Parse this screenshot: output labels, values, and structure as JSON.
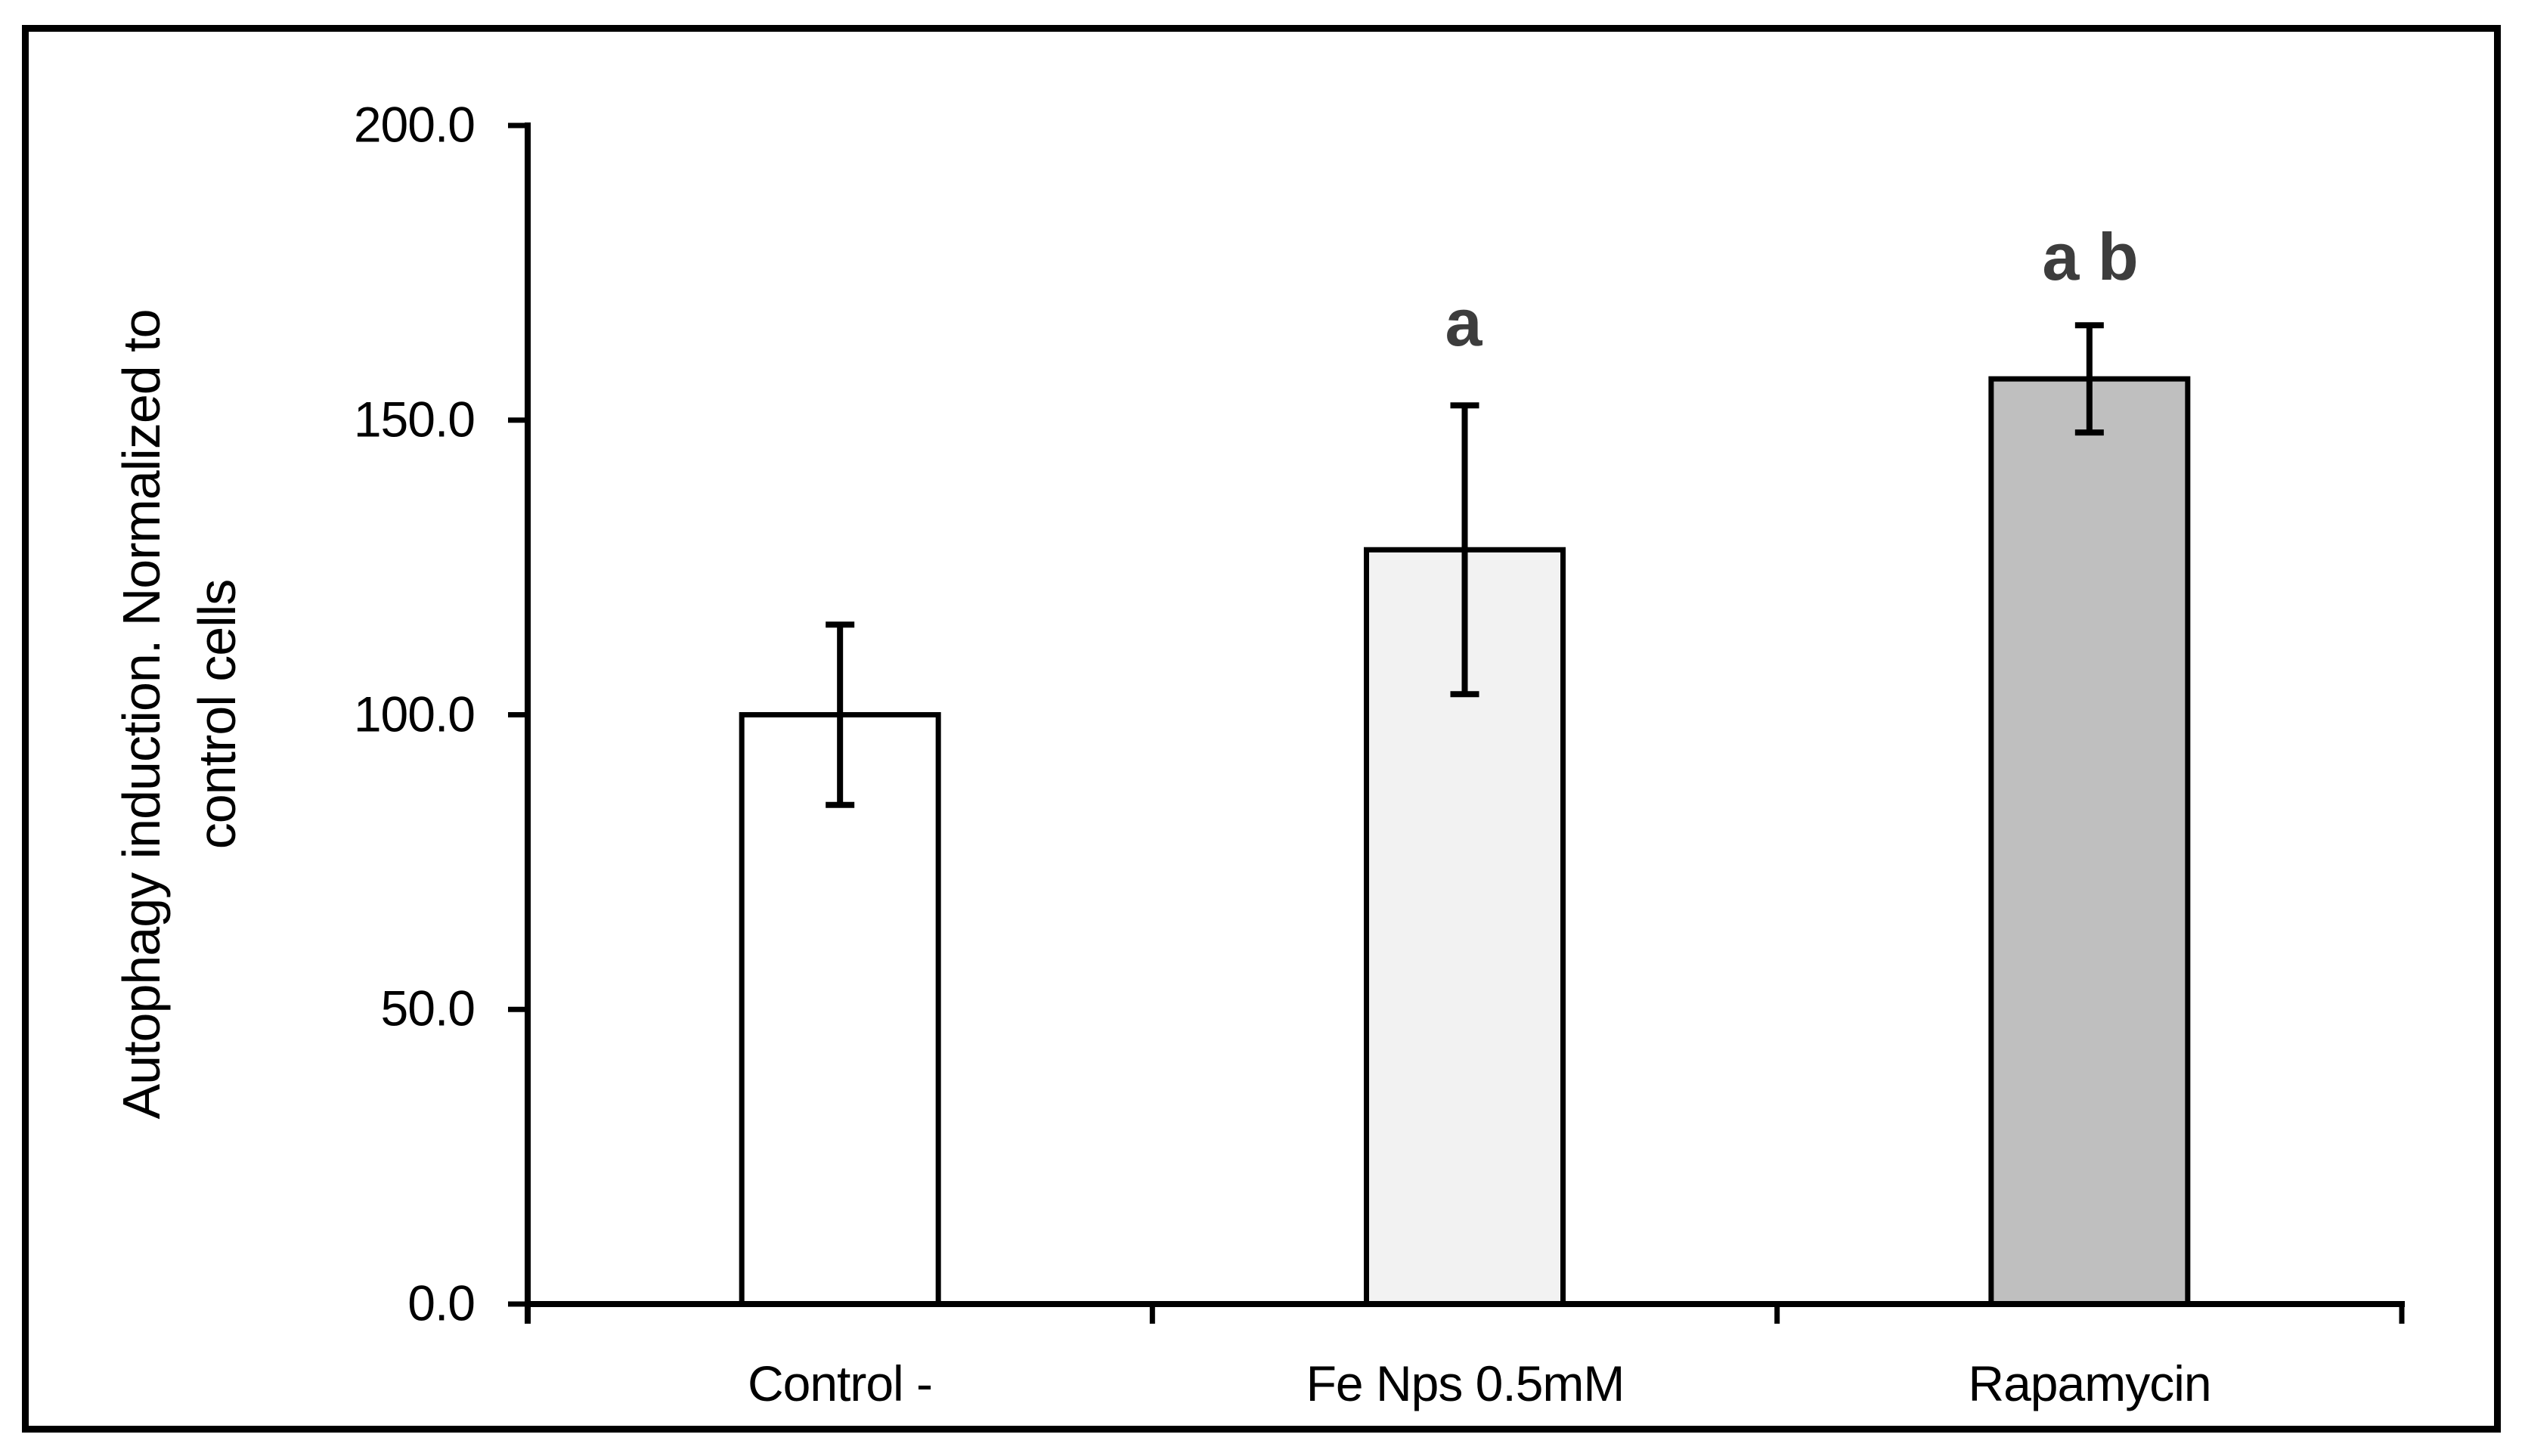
{
  "figure": {
    "background_color": "#ffffff",
    "border_color": "#000000"
  },
  "chart_data": {
    "type": "bar",
    "title": "",
    "categories": [
      "Control -",
      "Fe Nps 0.5mM",
      "Rapamycin"
    ],
    "values": [
      100.0,
      128.0,
      157.0
    ],
    "errors": [
      15.3,
      24.5,
      9.1
    ],
    "error_ranges": [
      [
        85.0,
        115.5
      ],
      [
        103.4,
        152.4
      ],
      [
        147.7,
        165.9
      ]
    ],
    "annotations": [
      "",
      "a",
      "a b"
    ],
    "ylabel": "Autophagy induction. Normalized to control cells",
    "ylabel_lines": [
      "Autophagy induction. Normalized to",
      "control cells"
    ],
    "xlabel": "",
    "yticks": [
      0,
      50,
      100,
      150,
      200
    ],
    "ytick_labels_top_to_bottom": [
      "200.0",
      "150.0",
      "100.0",
      "50.0",
      "0.0"
    ],
    "ylim": [
      0,
      200
    ],
    "grid": false,
    "legend": false,
    "bar_fills": [
      "#ffffff",
      "#f2f2f2",
      "#bfbfbf"
    ],
    "bar_border_color": "#000000",
    "axis_color": "#000000",
    "annotation_color": "#3d3d3d"
  }
}
